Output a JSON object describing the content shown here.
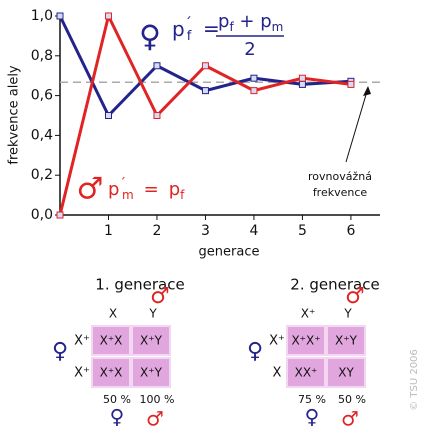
{
  "chart_data": {
    "type": "line",
    "x": [
      0,
      1,
      2,
      3,
      4,
      5,
      6
    ],
    "series": [
      {
        "name": "female",
        "color": "#23238c",
        "values": [
          1,
          0.5,
          0.75,
          0.625,
          0.6875,
          0.65625,
          0.671875
        ]
      },
      {
        "name": "male",
        "color": "#e02424",
        "values": [
          0,
          1,
          0.5,
          0.75,
          0.625,
          0.6875,
          0.65625
        ]
      }
    ],
    "equilibrium": 0.667,
    "xlim": [
      0,
      6.6
    ],
    "ylim": [
      0,
      1
    ],
    "xticks": [
      1,
      2,
      3,
      4,
      5,
      6
    ],
    "yticks": [
      {
        "value": 0,
        "label": "0,0"
      },
      {
        "value": 0.2,
        "label": "0,2"
      },
      {
        "value": 0.4,
        "label": "0,4"
      },
      {
        "value": 0.6,
        "label": "0,6"
      },
      {
        "value": 0.8,
        "label": "0,8"
      },
      {
        "value": 1,
        "label": "1,0"
      }
    ],
    "xlabel": "generace",
    "ylabel": "frekvence alely",
    "annotation": [
      "rovnovážná",
      "frekvence"
    ],
    "female_symbol": "♀",
    "male_symbol": "♂",
    "female_formula": {
      "left": "p",
      "left_sub": "f",
      "prime": "´",
      "eq": "=",
      "numerator": [
        "p",
        "f",
        " + p",
        "m"
      ],
      "denominator": "2"
    },
    "male_formula": {
      "left": "p",
      "left_sub": "m",
      "prime": "´",
      "eq": "=",
      "right": "p",
      "right_sub": "f"
    }
  },
  "panels": [
    {
      "title": "1. generace",
      "cols": [
        "X",
        "Y"
      ],
      "rows": [
        "X⁺",
        "X⁺"
      ],
      "cells": [
        [
          "X⁺X",
          "X⁺Y"
        ],
        [
          "X⁺X",
          "X⁺Y"
        ]
      ],
      "percents": [
        "50 %",
        "100 %"
      ]
    },
    {
      "title": "2. generace",
      "cols": [
        "X⁺",
        "Y"
      ],
      "rows": [
        "X⁺",
        "X"
      ],
      "cells": [
        [
          "X⁺X⁺",
          "X⁺Y"
        ],
        [
          "XX⁺",
          "XY"
        ]
      ],
      "percents": [
        "75 %",
        "50 %"
      ]
    }
  ],
  "copyright": "© TSU 2006"
}
